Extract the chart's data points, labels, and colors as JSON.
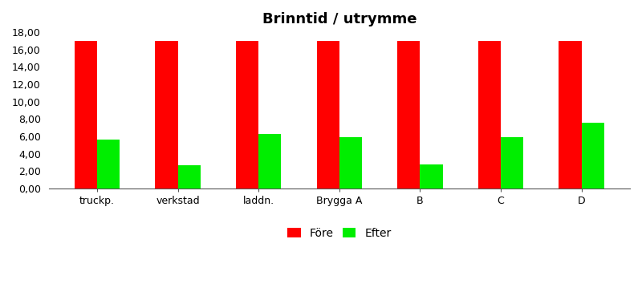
{
  "title": "Brinntid / utrymme",
  "categories": [
    "truckp.",
    "verkstad",
    "laddn.",
    "Brygga A",
    "B",
    "C",
    "D"
  ],
  "fore_values": [
    17.0,
    17.0,
    17.0,
    17.0,
    17.0,
    17.0,
    17.0
  ],
  "efter_values": [
    5.6,
    2.7,
    6.3,
    5.9,
    2.8,
    5.9,
    7.6
  ],
  "fore_color": "#ff0000",
  "efter_color": "#00ee00",
  "ylim": [
    0,
    18
  ],
  "yticks": [
    0.0,
    2.0,
    4.0,
    6.0,
    8.0,
    10.0,
    12.0,
    14.0,
    16.0,
    18.0
  ],
  "ytick_labels": [
    "0,00",
    "2,00",
    "4,00",
    "6,00",
    "8,00",
    "10,00",
    "12,00",
    "14,00",
    "16,00",
    "18,00"
  ],
  "legend_fore": "Före",
  "legend_efter": "Efter",
  "bar_width": 0.28,
  "background_color": "#ffffff",
  "title_fontsize": 13,
  "tick_fontsize": 9
}
